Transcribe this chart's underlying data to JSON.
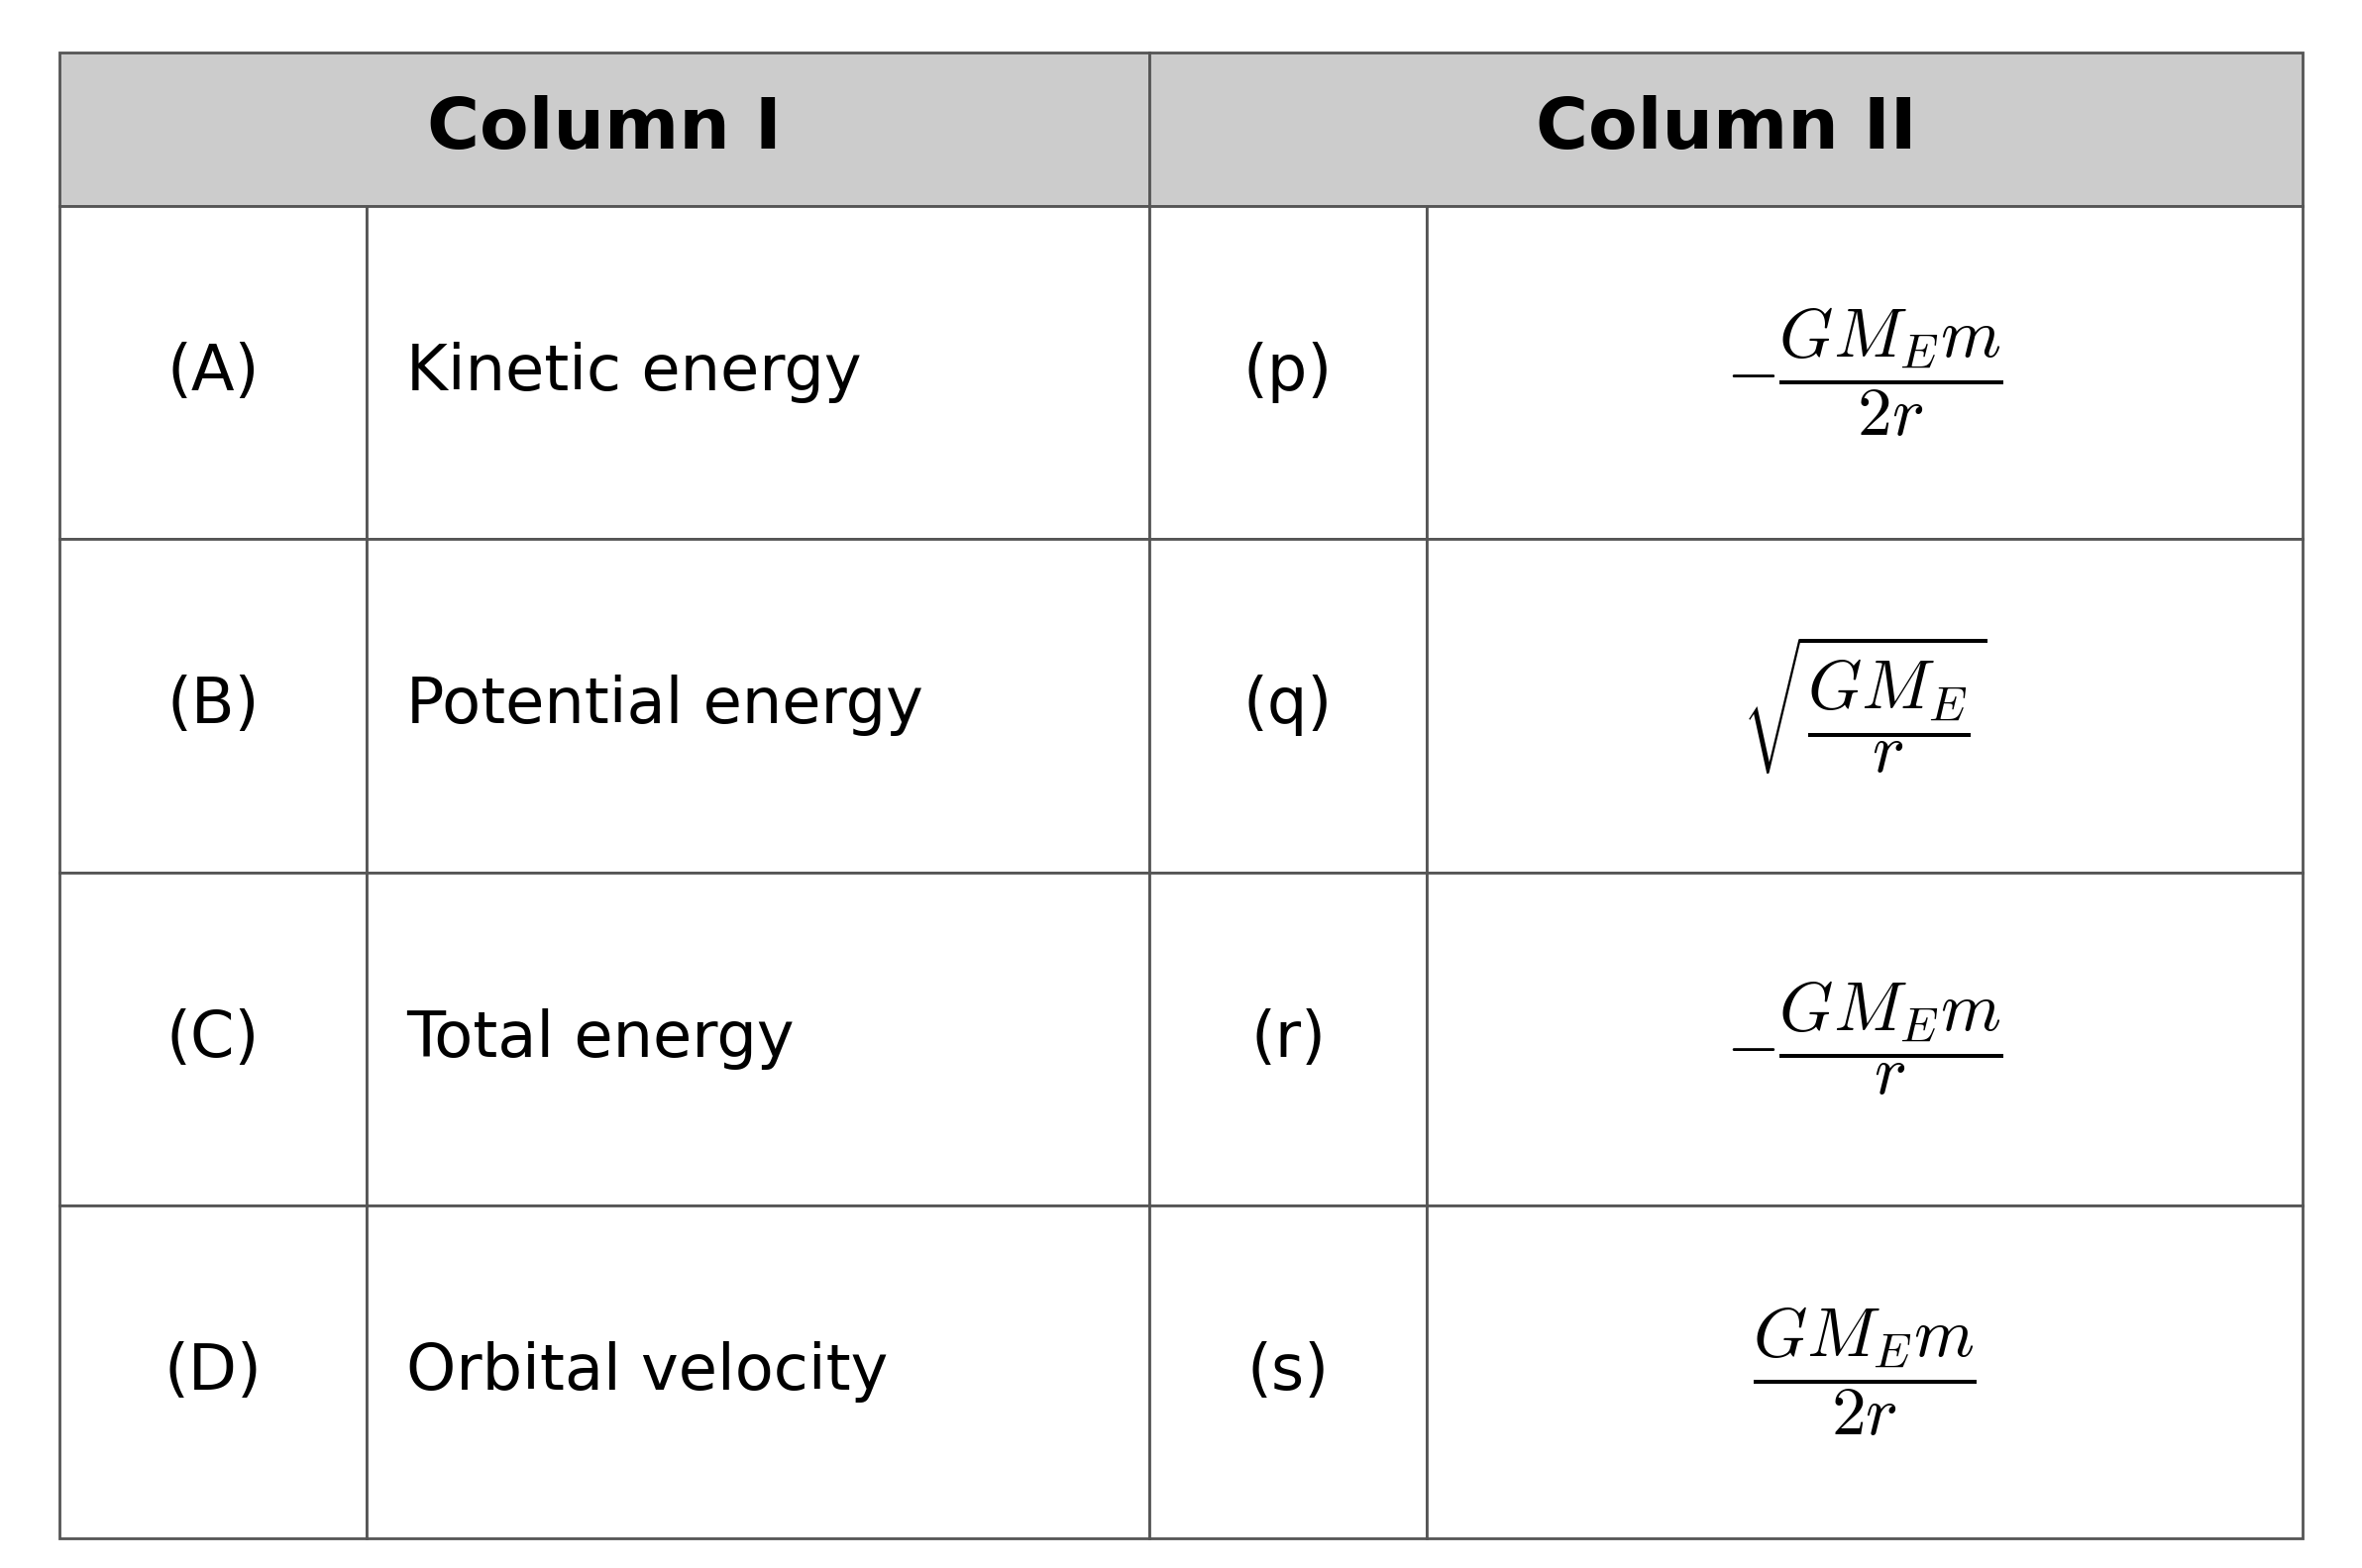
{
  "col1_header": "Column I",
  "col2_header": "Column II",
  "background_color": "#ffffff",
  "header_bg_color": "#cccccc",
  "border_color": "#555555",
  "labels_left": [
    "(A)",
    "(B)",
    "(C)",
    "(D)"
  ],
  "texts_left": [
    "Kinetic energy",
    "Potential energy",
    "Total energy",
    "Orbital velocity"
  ],
  "labels_right": [
    "(p)",
    "(q)",
    "(r)",
    "(s)"
  ],
  "formulas": [
    "$-\\dfrac{GM_{E}m}{2r}$",
    "$\\sqrt{\\dfrac{GM_{E}}{r}}$",
    "$-\\dfrac{GM_{E}m}{r}$",
    "$\\dfrac{GM_{E}m}{2r}$"
  ],
  "header_fontsize": 52,
  "label_fontsize": 46,
  "text_fontsize": 46,
  "formula_fontsize": 50,
  "border_lw": 2.0
}
